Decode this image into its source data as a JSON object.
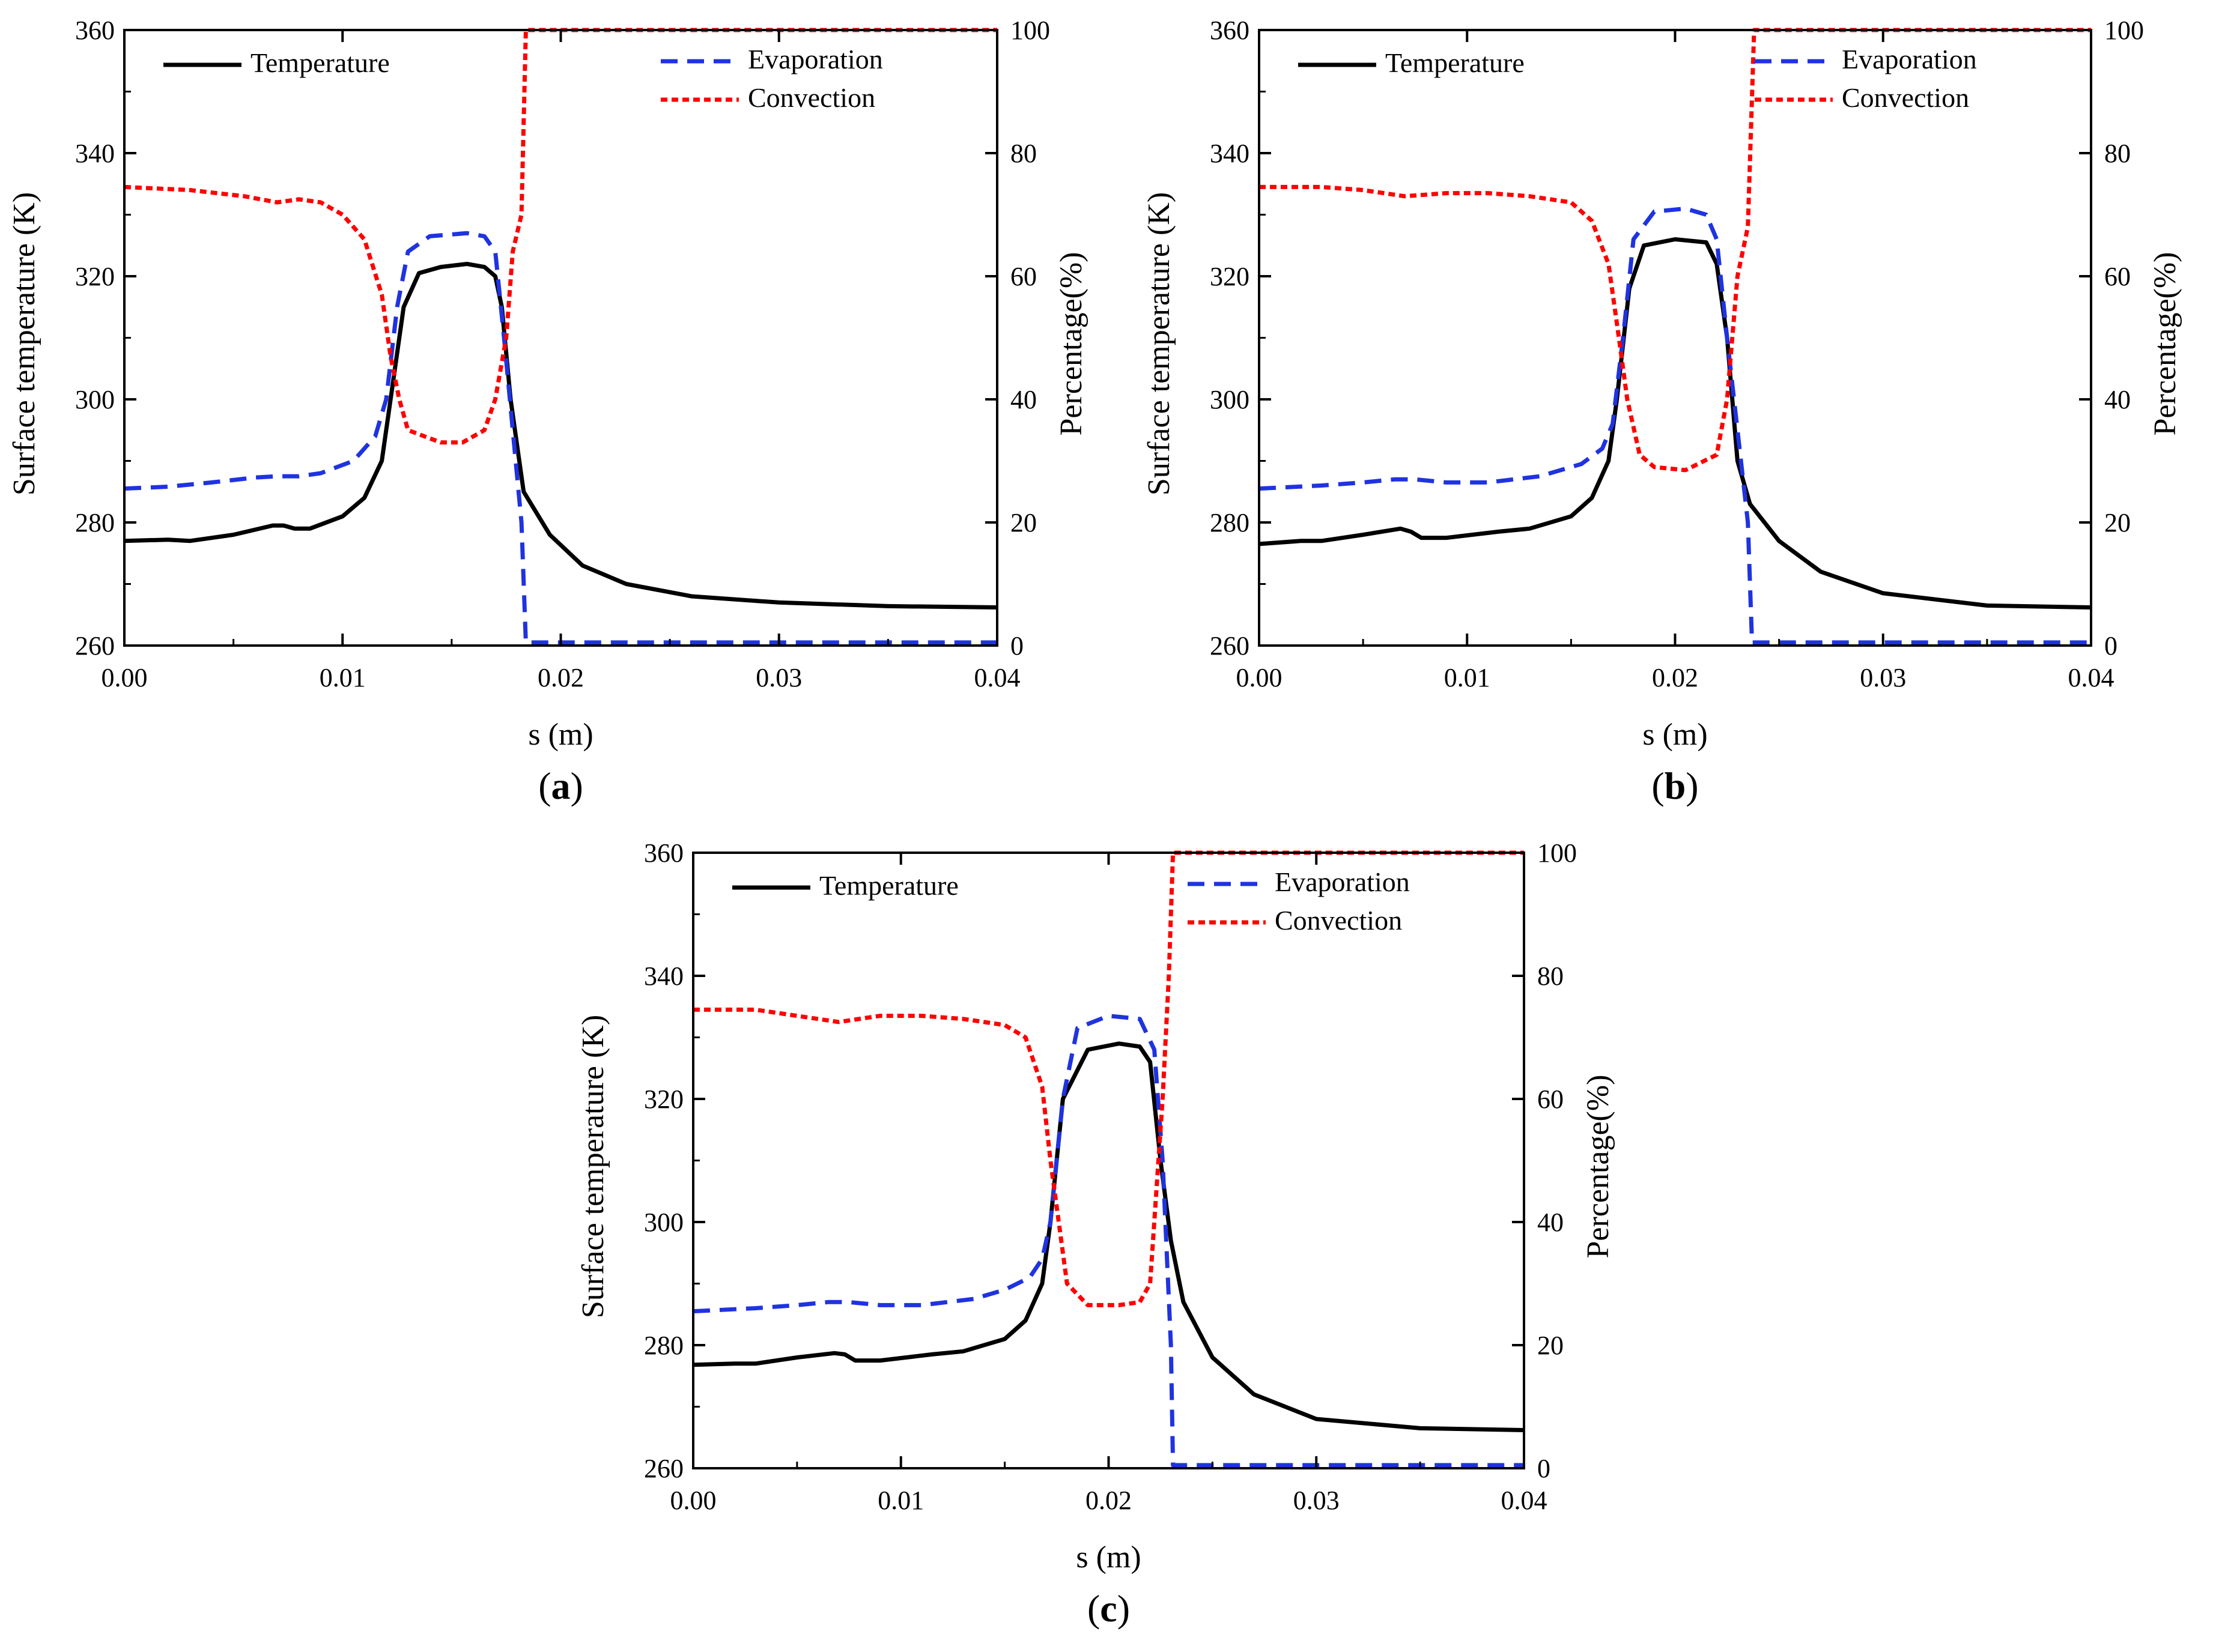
{
  "figure": {
    "panels": [
      {
        "id": "a",
        "caption_letter": "a"
      },
      {
        "id": "b",
        "caption_letter": "b"
      },
      {
        "id": "c",
        "caption_letter": "c"
      }
    ]
  },
  "chart_data": [
    {
      "type": "line",
      "panel": "a",
      "title": "",
      "xlabel": "s (m)",
      "ylabel": "Surface temperature (K)",
      "y2label": "Percentage(%)",
      "xlim": [
        0,
        0.04
      ],
      "ylim": [
        260,
        360
      ],
      "y2lim": [
        0,
        100
      ],
      "xticks": [
        "0.00",
        "0.01",
        "0.02",
        "0.03",
        "0.04"
      ],
      "yticks": [
        "260",
        "280",
        "300",
        "320",
        "340",
        "360"
      ],
      "y2ticks": [
        "0",
        "20",
        "40",
        "60",
        "80",
        "100"
      ],
      "grid": false,
      "legend": [
        {
          "label": "Temperature",
          "position": "top-left"
        },
        {
          "label": "Evaporation",
          "position": "top-right"
        },
        {
          "label": "Convection",
          "position": "top-right"
        }
      ],
      "series": [
        {
          "name": "Temperature",
          "axis": "left",
          "color": "#000000",
          "style": "solid",
          "points": [
            [
              0,
              277
            ],
            [
              0.002,
              277.2
            ],
            [
              0.003,
              277
            ],
            [
              0.005,
              278
            ],
            [
              0.0068,
              279.5
            ],
            [
              0.0073,
              279.5
            ],
            [
              0.0078,
              279
            ],
            [
              0.0085,
              279
            ],
            [
              0.01,
              281
            ],
            [
              0.011,
              284
            ],
            [
              0.0118,
              290
            ],
            [
              0.0122,
              300
            ],
            [
              0.0128,
              315
            ],
            [
              0.0135,
              320.5
            ],
            [
              0.0145,
              321.5
            ],
            [
              0.0157,
              322
            ],
            [
              0.0165,
              321.5
            ],
            [
              0.017,
              320
            ],
            [
              0.0173,
              315
            ],
            [
              0.0177,
              300
            ],
            [
              0.0183,
              285
            ],
            [
              0.0195,
              278
            ],
            [
              0.021,
              273
            ],
            [
              0.023,
              270
            ],
            [
              0.026,
              268
            ],
            [
              0.03,
              267
            ],
            [
              0.035,
              266.4
            ],
            [
              0.04,
              266.2
            ]
          ]
        },
        {
          "name": "Evaporation",
          "axis": "right",
          "color": "#1f33e0",
          "style": "dashed",
          "points": [
            [
              0,
              25.5
            ],
            [
              0.002,
              25.8
            ],
            [
              0.004,
              26.5
            ],
            [
              0.006,
              27.3
            ],
            [
              0.007,
              27.5
            ],
            [
              0.008,
              27.5
            ],
            [
              0.009,
              28
            ],
            [
              0.0105,
              30
            ],
            [
              0.0115,
              34
            ],
            [
              0.012,
              40
            ],
            [
              0.0125,
              55
            ],
            [
              0.013,
              64
            ],
            [
              0.014,
              66.5
            ],
            [
              0.0157,
              67
            ],
            [
              0.0165,
              66.5
            ],
            [
              0.017,
              64
            ],
            [
              0.0174,
              50
            ],
            [
              0.0178,
              35
            ],
            [
              0.0182,
              20
            ],
            [
              0.0184,
              0.5
            ],
            [
              0.04,
              0.5
            ]
          ]
        },
        {
          "name": "Convection",
          "axis": "right",
          "color": "#ff0000",
          "style": "dotted",
          "points": [
            [
              0,
              74.5
            ],
            [
              0.003,
              74
            ],
            [
              0.0055,
              73
            ],
            [
              0.007,
              72
            ],
            [
              0.008,
              72.5
            ],
            [
              0.009,
              72
            ],
            [
              0.01,
              70
            ],
            [
              0.011,
              66
            ],
            [
              0.0118,
              57
            ],
            [
              0.0122,
              47
            ],
            [
              0.0126,
              40
            ],
            [
              0.013,
              35
            ],
            [
              0.0145,
              33
            ],
            [
              0.0155,
              33
            ],
            [
              0.0165,
              35
            ],
            [
              0.017,
              40
            ],
            [
              0.0175,
              50
            ],
            [
              0.0178,
              64
            ],
            [
              0.0182,
              70
            ],
            [
              0.0184,
              100
            ],
            [
              0.04,
              100
            ]
          ]
        }
      ]
    },
    {
      "type": "line",
      "panel": "b",
      "title": "",
      "xlabel": "s (m)",
      "ylabel": "Surface temperature (K)",
      "y2label": "Percentage(%)",
      "xlim": [
        0,
        0.04
      ],
      "ylim": [
        260,
        360
      ],
      "y2lim": [
        0,
        100
      ],
      "xticks": [
        "0.00",
        "0.01",
        "0.02",
        "0.03",
        "0.04"
      ],
      "yticks": [
        "260",
        "280",
        "300",
        "320",
        "340",
        "360"
      ],
      "y2ticks": [
        "0",
        "20",
        "40",
        "60",
        "80",
        "100"
      ],
      "grid": false,
      "legend": [
        {
          "label": "Temperature",
          "position": "top-left"
        },
        {
          "label": "Evaporation",
          "position": "top-right"
        },
        {
          "label": "Convection",
          "position": "top-right"
        }
      ],
      "series": [
        {
          "name": "Temperature",
          "axis": "left",
          "color": "#000000",
          "style": "solid",
          "points": [
            [
              0,
              276.5
            ],
            [
              0.002,
              277
            ],
            [
              0.003,
              277
            ],
            [
              0.005,
              278
            ],
            [
              0.0068,
              279
            ],
            [
              0.0073,
              278.5
            ],
            [
              0.0078,
              277.5
            ],
            [
              0.009,
              277.5
            ],
            [
              0.0115,
              278.5
            ],
            [
              0.013,
              279
            ],
            [
              0.015,
              281
            ],
            [
              0.016,
              284
            ],
            [
              0.0168,
              290
            ],
            [
              0.0172,
              300
            ],
            [
              0.0178,
              318
            ],
            [
              0.0185,
              325
            ],
            [
              0.02,
              326
            ],
            [
              0.0215,
              325.5
            ],
            [
              0.022,
              322
            ],
            [
              0.0225,
              310
            ],
            [
              0.023,
              290
            ],
            [
              0.0236,
              283
            ],
            [
              0.025,
              277
            ],
            [
              0.027,
              272
            ],
            [
              0.03,
              268.5
            ],
            [
              0.035,
              266.5
            ],
            [
              0.04,
              266.2
            ]
          ]
        },
        {
          "name": "Evaporation",
          "axis": "right",
          "color": "#1f33e0",
          "style": "dashed",
          "points": [
            [
              0,
              25.5
            ],
            [
              0.003,
              26
            ],
            [
              0.005,
              26.5
            ],
            [
              0.0065,
              27
            ],
            [
              0.0075,
              27
            ],
            [
              0.009,
              26.5
            ],
            [
              0.011,
              26.5
            ],
            [
              0.0135,
              27.5
            ],
            [
              0.0155,
              29.5
            ],
            [
              0.0165,
              32
            ],
            [
              0.017,
              36
            ],
            [
              0.0175,
              50
            ],
            [
              0.018,
              66
            ],
            [
              0.019,
              70.5
            ],
            [
              0.0205,
              71
            ],
            [
              0.0215,
              70
            ],
            [
              0.022,
              66
            ],
            [
              0.0225,
              50
            ],
            [
              0.023,
              35
            ],
            [
              0.0235,
              20
            ],
            [
              0.0237,
              0.5
            ],
            [
              0.04,
              0.5
            ]
          ]
        },
        {
          "name": "Convection",
          "axis": "right",
          "color": "#ff0000",
          "style": "dotted",
          "points": [
            [
              0,
              74.5
            ],
            [
              0.003,
              74.5
            ],
            [
              0.005,
              74
            ],
            [
              0.007,
              73
            ],
            [
              0.009,
              73.5
            ],
            [
              0.011,
              73.5
            ],
            [
              0.013,
              73
            ],
            [
              0.015,
              72
            ],
            [
              0.016,
              69
            ],
            [
              0.0168,
              62
            ],
            [
              0.0173,
              50
            ],
            [
              0.0177,
              40
            ],
            [
              0.0183,
              31
            ],
            [
              0.019,
              29
            ],
            [
              0.0205,
              28.5
            ],
            [
              0.022,
              31
            ],
            [
              0.0225,
              40
            ],
            [
              0.023,
              60
            ],
            [
              0.0235,
              68
            ],
            [
              0.0238,
              100
            ],
            [
              0.04,
              100
            ]
          ]
        }
      ]
    },
    {
      "type": "line",
      "panel": "c",
      "title": "",
      "xlabel": "s (m)",
      "ylabel": "Surface temperature (K)",
      "y2label": "Percentage(%)",
      "xlim": [
        0,
        0.04
      ],
      "ylim": [
        260,
        360
      ],
      "y2lim": [
        0,
        100
      ],
      "xticks": [
        "0.00",
        "0.01",
        "0.02",
        "0.03",
        "0.04"
      ],
      "yticks": [
        "260",
        "280",
        "300",
        "320",
        "340",
        "360"
      ],
      "y2ticks": [
        "0",
        "20",
        "40",
        "60",
        "80",
        "100"
      ],
      "grid": false,
      "legend": [
        {
          "label": "Temperature",
          "position": "top-left"
        },
        {
          "label": "Evaporation",
          "position": "top-right"
        },
        {
          "label": "Convection",
          "position": "top-right"
        }
      ],
      "series": [
        {
          "name": "Temperature",
          "axis": "left",
          "color": "#000000",
          "style": "solid",
          "points": [
            [
              0,
              276.8
            ],
            [
              0.002,
              277
            ],
            [
              0.003,
              277
            ],
            [
              0.005,
              278
            ],
            [
              0.0068,
              278.7
            ],
            [
              0.0073,
              278.5
            ],
            [
              0.0078,
              277.5
            ],
            [
              0.009,
              277.5
            ],
            [
              0.0115,
              278.5
            ],
            [
              0.013,
              279
            ],
            [
              0.015,
              281
            ],
            [
              0.016,
              284
            ],
            [
              0.0168,
              290
            ],
            [
              0.0172,
              300
            ],
            [
              0.0178,
              320
            ],
            [
              0.019,
              328
            ],
            [
              0.0205,
              329
            ],
            [
              0.0215,
              328.5
            ],
            [
              0.022,
              326
            ],
            [
              0.0225,
              310
            ],
            [
              0.023,
              297
            ],
            [
              0.0236,
              287
            ],
            [
              0.025,
              278
            ],
            [
              0.027,
              272
            ],
            [
              0.03,
              268
            ],
            [
              0.035,
              266.5
            ],
            [
              0.04,
              266.2
            ]
          ]
        },
        {
          "name": "Evaporation",
          "axis": "right",
          "color": "#1f33e0",
          "style": "dashed",
          "points": [
            [
              0,
              25.5
            ],
            [
              0.003,
              26
            ],
            [
              0.005,
              26.5
            ],
            [
              0.0065,
              27
            ],
            [
              0.0075,
              27
            ],
            [
              0.009,
              26.5
            ],
            [
              0.011,
              26.5
            ],
            [
              0.0135,
              27.5
            ],
            [
              0.015,
              29
            ],
            [
              0.0162,
              31
            ],
            [
              0.0168,
              34
            ],
            [
              0.0172,
              40
            ],
            [
              0.0178,
              60
            ],
            [
              0.0185,
              71.5
            ],
            [
              0.02,
              73.5
            ],
            [
              0.0215,
              73
            ],
            [
              0.0222,
              68
            ],
            [
              0.0226,
              50
            ],
            [
              0.023,
              20
            ],
            [
              0.0231,
              0.5
            ],
            [
              0.04,
              0.5
            ]
          ]
        },
        {
          "name": "Convection",
          "axis": "right",
          "color": "#ff0000",
          "style": "dotted",
          "points": [
            [
              0,
              74.5
            ],
            [
              0.003,
              74.5
            ],
            [
              0.005,
              73.5
            ],
            [
              0.007,
              72.5
            ],
            [
              0.009,
              73.5
            ],
            [
              0.011,
              73.5
            ],
            [
              0.013,
              73
            ],
            [
              0.015,
              72
            ],
            [
              0.016,
              70
            ],
            [
              0.0168,
              62
            ],
            [
              0.0172,
              50
            ],
            [
              0.0176,
              40
            ],
            [
              0.018,
              30
            ],
            [
              0.019,
              26.5
            ],
            [
              0.0205,
              26.5
            ],
            [
              0.0215,
              27
            ],
            [
              0.022,
              30
            ],
            [
              0.0226,
              60
            ],
            [
              0.0229,
              80
            ],
            [
              0.0231,
              100
            ],
            [
              0.04,
              100
            ]
          ]
        }
      ]
    }
  ]
}
